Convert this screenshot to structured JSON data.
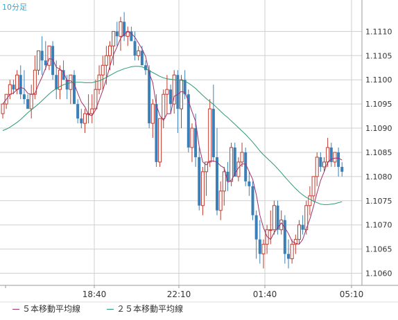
{
  "timeframe_label": "10分足",
  "colors": {
    "up": "#c0392b",
    "down": "#3a7fb8",
    "ma5": "#a0306a",
    "ma25": "#2a9a70",
    "grid": "#cfcfcf",
    "frame": "#9a9a9a"
  },
  "chart_data": {
    "type": "candlestick",
    "y_ticks": [
      "1.1060",
      "1.1065",
      "1.1070",
      "1.1075",
      "1.1080",
      "1.1085",
      "1.1090",
      "1.1095",
      "1.1100",
      "1.1105",
      "1.1110"
    ],
    "ylim": [
      1.10575,
      1.11165
    ],
    "x_ticks": [
      "18:40",
      "22:10",
      "01:40",
      "05:10"
    ],
    "legend": [
      "５本移動平均線",
      "２５本移動平均線"
    ],
    "candles": [
      [
        1.1093,
        1.1095,
        1.1092,
        1.1095
      ],
      [
        1.1095,
        1.1097,
        1.1094,
        1.1097
      ],
      [
        1.1097,
        1.11,
        1.1096,
        1.1099
      ],
      [
        1.1099,
        1.11,
        1.1097,
        1.1098
      ],
      [
        1.1098,
        1.1102,
        1.1097,
        1.1101
      ],
      [
        1.1101,
        1.1103,
        1.1096,
        1.1097
      ],
      [
        1.1097,
        1.1102,
        1.1095,
        1.1096
      ],
      [
        1.1096,
        1.1097,
        1.1094,
        1.1094
      ],
      [
        1.1094,
        1.1099,
        1.1092,
        1.1097
      ],
      [
        1.1097,
        1.1105,
        1.1096,
        1.1102
      ],
      [
        1.1102,
        1.1106,
        1.1101,
        1.1106
      ],
      [
        1.1106,
        1.1109,
        1.1101,
        1.1104
      ],
      [
        1.1104,
        1.1108,
        1.1102,
        1.1103
      ],
      [
        1.1103,
        1.1107,
        1.1102,
        1.1107
      ],
      [
        1.1107,
        1.1108,
        1.11,
        1.1101
      ],
      [
        1.1101,
        1.1104,
        1.1096,
        1.1098
      ],
      [
        1.1098,
        1.1103,
        1.1096,
        1.1102
      ],
      [
        1.1102,
        1.1104,
        1.11,
        1.11
      ],
      [
        1.11,
        1.1101,
        1.1096,
        1.1098
      ],
      [
        1.1098,
        1.1101,
        1.1095,
        1.1101
      ],
      [
        1.1101,
        1.1102,
        1.1095,
        1.1095
      ],
      [
        1.1095,
        1.1096,
        1.1091,
        1.1092
      ],
      [
        1.1092,
        1.1094,
        1.109,
        1.1091
      ],
      [
        1.1091,
        1.1094,
        1.1089,
        1.1093
      ],
      [
        1.1093,
        1.1097,
        1.1091,
        1.1093
      ],
      [
        1.1093,
        1.1097,
        1.1091,
        1.1094
      ],
      [
        1.1094,
        1.11,
        1.1094,
        1.1098
      ],
      [
        1.1098,
        1.1103,
        1.1097,
        1.1101
      ],
      [
        1.1101,
        1.1105,
        1.1098,
        1.1103
      ],
      [
        1.1103,
        1.1107,
        1.1099,
        1.1105
      ],
      [
        1.1105,
        1.1108,
        1.1102,
        1.1107
      ],
      [
        1.1107,
        1.111,
        1.1103,
        1.111
      ],
      [
        1.111,
        1.1112,
        1.1107,
        1.1109
      ],
      [
        1.1109,
        1.1113,
        1.1106,
        1.1112
      ],
      [
        1.1112,
        1.1114,
        1.1108,
        1.1109
      ],
      [
        1.1109,
        1.1111,
        1.1107,
        1.111
      ],
      [
        1.111,
        1.1111,
        1.1108,
        1.1108
      ],
      [
        1.1108,
        1.111,
        1.1104,
        1.1105
      ],
      [
        1.1105,
        1.1107,
        1.1104,
        1.1106
      ],
      [
        1.1106,
        1.1107,
        1.1103,
        1.1103
      ],
      [
        1.1103,
        1.1104,
        1.1101,
        1.1102
      ],
      [
        1.1102,
        1.1103,
        1.109,
        1.1091
      ],
      [
        1.1091,
        1.1096,
        1.1088,
        1.1095
      ],
      [
        1.1095,
        1.1097,
        1.1082,
        1.1083
      ],
      [
        1.1083,
        1.1092,
        1.1082,
        1.1092
      ],
      [
        1.1092,
        1.1098,
        1.109,
        1.1097
      ],
      [
        1.1097,
        1.1101,
        1.1093,
        1.1098
      ],
      [
        1.1098,
        1.1099,
        1.1093,
        1.1095
      ],
      [
        1.1095,
        1.1102,
        1.1093,
        1.1101
      ],
      [
        1.1101,
        1.1102,
        1.1089,
        1.1094
      ],
      [
        1.1094,
        1.1101,
        1.109,
        1.11
      ],
      [
        1.11,
        1.1102,
        1.1096,
        1.1097
      ],
      [
        1.1097,
        1.1098,
        1.1085,
        1.1086
      ],
      [
        1.1086,
        1.1091,
        1.1083,
        1.109
      ],
      [
        1.109,
        1.1093,
        1.1082,
        1.1084
      ],
      [
        1.1084,
        1.1086,
        1.1073,
        1.1074
      ],
      [
        1.1074,
        1.1082,
        1.1072,
        1.1081
      ],
      [
        1.1081,
        1.1083,
        1.1076,
        1.1083
      ],
      [
        1.1083,
        1.1096,
        1.1082,
        1.1094
      ],
      [
        1.1094,
        1.1099,
        1.1083,
        1.1084
      ],
      [
        1.1084,
        1.109,
        1.1072,
        1.1073
      ],
      [
        1.1073,
        1.1079,
        1.1071,
        1.1077
      ],
      [
        1.1077,
        1.1082,
        1.1074,
        1.1081
      ],
      [
        1.1081,
        1.1083,
        1.1077,
        1.1079
      ],
      [
        1.1079,
        1.1087,
        1.1078,
        1.1086
      ],
      [
        1.1086,
        1.1087,
        1.108,
        1.108
      ],
      [
        1.108,
        1.1084,
        1.1079,
        1.1083
      ],
      [
        1.1083,
        1.1087,
        1.1082,
        1.1085
      ],
      [
        1.1085,
        1.1086,
        1.1078,
        1.1079
      ],
      [
        1.1079,
        1.1081,
        1.1076,
        1.1078
      ],
      [
        1.1078,
        1.1079,
        1.1071,
        1.1072
      ],
      [
        1.1072,
        1.1073,
        1.1063,
        1.1067
      ],
      [
        1.1067,
        1.1071,
        1.1062,
        1.1064
      ],
      [
        1.1064,
        1.1067,
        1.1061,
        1.1066
      ],
      [
        1.1066,
        1.107,
        1.1064,
        1.1069
      ],
      [
        1.1069,
        1.1073,
        1.1066,
        1.1069
      ],
      [
        1.1069,
        1.1075,
        1.1068,
        1.1074
      ],
      [
        1.1074,
        1.1075,
        1.1068,
        1.1069
      ],
      [
        1.1069,
        1.1073,
        1.1068,
        1.1071
      ],
      [
        1.1071,
        1.1072,
        1.1062,
        1.1064
      ],
      [
        1.1064,
        1.1067,
        1.1061,
        1.1063
      ],
      [
        1.1063,
        1.1067,
        1.1062,
        1.1066
      ],
      [
        1.1066,
        1.1068,
        1.1064,
        1.1067
      ],
      [
        1.1067,
        1.1071,
        1.1066,
        1.107
      ],
      [
        1.107,
        1.1072,
        1.1068,
        1.1069
      ],
      [
        1.1069,
        1.1075,
        1.1068,
        1.1074
      ],
      [
        1.1074,
        1.1078,
        1.1072,
        1.1076
      ],
      [
        1.1076,
        1.108,
        1.1075,
        1.108
      ],
      [
        1.108,
        1.1085,
        1.1078,
        1.1084
      ],
      [
        1.1084,
        1.1085,
        1.1081,
        1.1082
      ],
      [
        1.1082,
        1.1084,
        1.1081,
        1.1083
      ],
      [
        1.1083,
        1.1088,
        1.1082,
        1.1086
      ],
      [
        1.1086,
        1.1087,
        1.1082,
        1.1083
      ],
      [
        1.1083,
        1.1085,
        1.1082,
        1.1085
      ],
      [
        1.1085,
        1.1086,
        1.108,
        1.1082
      ],
      [
        1.1082,
        1.1083,
        1.108,
        1.1081
      ]
    ],
    "ma25": [
      1.10895,
      1.10898,
      1.10902,
      1.10907,
      1.10912,
      1.10918,
      1.10925,
      1.10932,
      1.10938,
      1.10944,
      1.1095,
      1.10957,
      1.10964,
      1.10971,
      1.10977,
      1.10982,
      1.10986,
      1.1099,
      1.10992,
      1.10994,
      1.10995,
      1.10995,
      1.10995,
      1.10994,
      1.10994,
      1.10994,
      1.10996,
      1.10998,
      1.11001,
      1.11005,
      1.11009,
      1.11013,
      1.11017,
      1.1102,
      1.11023,
      1.11025,
      1.11027,
      1.11028,
      1.11028,
      1.11027,
      1.11023,
      1.11019,
      1.11015,
      1.11011,
      1.11007,
      1.11004,
      1.11002,
      1.11001,
      1.11,
      1.11,
      1.10999,
      1.10997,
      1.10993,
      1.10988,
      1.10982,
      1.10975,
      1.10968,
      1.10961,
      1.10955,
      1.10949,
      1.10942,
      1.10935,
      1.10928,
      1.10922,
      1.10915,
      1.10908,
      1.10901,
      1.10894,
      1.10887,
      1.10879,
      1.10871,
      1.10862,
      1.10853,
      1.10845,
      1.10838,
      1.10831,
      1.10824,
      1.10816,
      1.10808,
      1.10799,
      1.10791,
      1.10783,
      1.10775,
      1.10768,
      1.10762,
      1.10757,
      1.10753,
      1.10749,
      1.10746,
      1.10743,
      1.10742,
      1.10742,
      1.10743,
      1.10744,
      1.10746,
      1.10748
    ]
  }
}
